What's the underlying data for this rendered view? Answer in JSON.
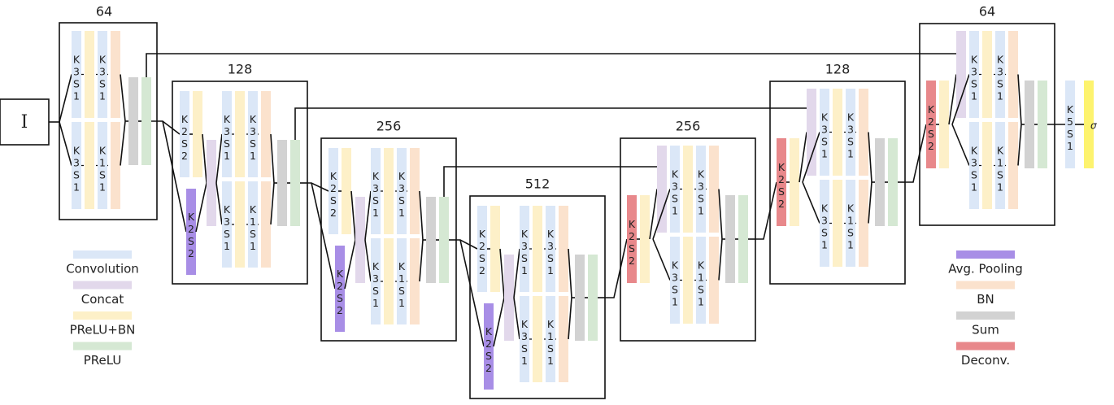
{
  "input": "I",
  "blocks": [
    {
      "title": "64",
      "branches": [
        [
          "K3S1",
          "K3S1"
        ],
        [
          "K3S1",
          "K1S1"
        ]
      ]
    },
    {
      "title": "128",
      "downsample": [
        "K2S2",
        "K2S2"
      ],
      "branches": [
        [
          "K3S1",
          "K3S1"
        ],
        [
          "K3S1",
          "K1S1"
        ]
      ]
    },
    {
      "title": "256",
      "downsample": [
        "K2S2",
        "K2S2"
      ],
      "branches": [
        [
          "K3S1",
          "K3S1"
        ],
        [
          "K3S1",
          "K1S1"
        ]
      ]
    },
    {
      "title": "512",
      "downsample": [
        "K2S2",
        "K2S2"
      ],
      "branches": [
        [
          "K3S1",
          "K3S1"
        ],
        [
          "K3S1",
          "K1S1"
        ]
      ]
    },
    {
      "title": "256",
      "upsample": "K2S2",
      "branches": [
        [
          "K3S1",
          "K3S1"
        ],
        [
          "K3S1",
          "K1S1"
        ]
      ]
    },
    {
      "title": "128",
      "upsample": "K2S2",
      "branches": [
        [
          "K3S1",
          "K3S1"
        ],
        [
          "K3S1",
          "K1S1"
        ]
      ]
    },
    {
      "title": "64",
      "upsample": "K2S2",
      "branches": [
        [
          "K3S1",
          "K3S1"
        ],
        [
          "K3S1",
          "K1S1"
        ]
      ]
    }
  ],
  "output": {
    "conv": "K5S1",
    "activation": "σ"
  },
  "legend": [
    {
      "name": "Convolution",
      "color": "#dbe7f7"
    },
    {
      "name": "Concat",
      "color": "#e2d8eb"
    },
    {
      "name": "PReLU+BN",
      "color": "#fdf0c8"
    },
    {
      "name": "PReLU",
      "color": "#d5e8d3"
    },
    {
      "name": "Avg. Pooling",
      "color": "#a88ee6"
    },
    {
      "name": "BN",
      "color": "#fbe2cd"
    },
    {
      "name": "Sum",
      "color": "#d2d2d2"
    },
    {
      "name": "Deconv.",
      "color": "#e8888b"
    }
  ]
}
